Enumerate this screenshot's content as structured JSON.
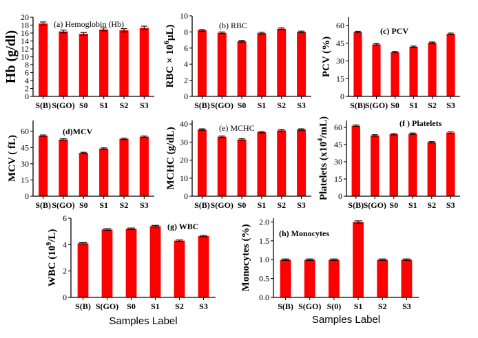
{
  "chart_data": [
    {
      "id": "hb",
      "type": "bar",
      "title": "(a) Hemoglobin (Hb)",
      "ylabel": "Hb (g/dl)",
      "categories": [
        "S(B)",
        "S(GO)",
        "S0",
        "S1",
        "S2",
        "S3"
      ],
      "values": [
        18.4,
        16.4,
        15.8,
        16.9,
        16.7,
        17.3
      ],
      "errors": [
        0.4,
        0.35,
        0.35,
        0.4,
        0.4,
        0.45
      ],
      "ylim": [
        0,
        20
      ],
      "yticks": [
        "0",
        "2",
        "4",
        "6",
        "8",
        "10",
        "12",
        "14",
        "16",
        "18",
        "20"
      ],
      "xlabel": ""
    },
    {
      "id": "rbc",
      "type": "bar",
      "title": "(b) RBC",
      "ylabel": "RBC × 10^6μL)",
      "categories": [
        "S(B)",
        "S(GO)",
        "S0",
        "S1",
        "S2",
        "S3"
      ],
      "values": [
        8.2,
        7.9,
        6.85,
        7.85,
        8.4,
        8.0
      ],
      "errors": [
        0.1,
        0.1,
        0.1,
        0.1,
        0.1,
        0.1
      ],
      "ylim": [
        0,
        10
      ],
      "yticks": [
        "0",
        "2",
        "4",
        "6",
        "8",
        "10"
      ],
      "xlabel": ""
    },
    {
      "id": "pcv",
      "type": "bar",
      "title": "(c) PCV",
      "ylabel": "PCV (%)",
      "categories": [
        "S(B)",
        "S(GO)",
        "S0",
        "S1",
        "S2",
        "S3"
      ],
      "values": [
        54.5,
        44.0,
        37.5,
        42.0,
        45.5,
        53.0
      ],
      "errors": [
        0.6,
        0.5,
        0.5,
        0.5,
        0.5,
        0.6
      ],
      "ylim": [
        0,
        67
      ],
      "yticks": [
        "0",
        "15",
        "30",
        "45",
        "60"
      ],
      "xlabel": ""
    },
    {
      "id": "mcv",
      "type": "bar",
      "title": "(d)MCV",
      "ylabel": "MCV ( fL)",
      "categories": [
        "S(B)",
        "S(GO)",
        "S0",
        "S1",
        "S2",
        "S3"
      ],
      "values": [
        56.0,
        52.5,
        40.0,
        44.0,
        53.0,
        55.0
      ],
      "errors": [
        0.6,
        0.5,
        0.5,
        0.5,
        0.5,
        0.6
      ],
      "ylim": [
        0,
        70
      ],
      "yticks": [
        "0",
        "15",
        "30",
        "45",
        "60"
      ],
      "xlabel": ""
    },
    {
      "id": "mchc",
      "type": "bar",
      "title": "(e) MCHC",
      "ylabel": "MCHC (g/dL)",
      "categories": [
        "S(B)",
        "S(GO)",
        "S0",
        "S1",
        "S2",
        "S3"
      ],
      "values": [
        37.0,
        33.0,
        31.5,
        35.5,
        36.5,
        37.0
      ],
      "errors": [
        0.4,
        0.35,
        0.35,
        0.4,
        0.4,
        0.4
      ],
      "ylim": [
        0,
        42
      ],
      "yticks": [
        "0",
        "10",
        "20",
        "30",
        "40"
      ],
      "xlabel": ""
    },
    {
      "id": "platelets",
      "type": "bar",
      "title": "(f ) Platelets",
      "ylabel": "Platelets (x10^4/mL)",
      "categories": [
        "S(B)",
        "S(GO)",
        "S0",
        "S1",
        "S2",
        "S3"
      ],
      "values": [
        61.5,
        53.0,
        54.0,
        54.5,
        47.0,
        55.5
      ],
      "errors": [
        0.6,
        0.5,
        0.5,
        0.5,
        0.5,
        0.6
      ],
      "ylim": [
        0,
        66
      ],
      "yticks": [
        "0",
        "15",
        "30",
        "45",
        "60"
      ],
      "xlabel": ""
    },
    {
      "id": "wbc",
      "type": "bar",
      "title": "(g) WBC",
      "ylabel": "WBC (10^9/L)",
      "categories": [
        "S(B)",
        "S(GO)",
        "S0",
        "S1",
        "S2",
        "S3"
      ],
      "values": [
        4.1,
        5.15,
        5.2,
        5.4,
        4.3,
        4.65
      ],
      "errors": [
        0.05,
        0.06,
        0.06,
        0.06,
        0.05,
        0.05
      ],
      "ylim": [
        0,
        6
      ],
      "yticks": [
        "0",
        "2",
        "4",
        "6"
      ],
      "xlabel": "Samples Label"
    },
    {
      "id": "monocytes",
      "type": "bar",
      "title": "(h) Monocytes",
      "ylabel": "Monocytes (%)",
      "categories": [
        "S(B)",
        "S(GO)",
        "S(0)",
        "S1",
        "S2",
        "S3"
      ],
      "values": [
        1.0,
        1.0,
        1.0,
        2.0,
        1.0,
        1.0
      ],
      "errors": [
        0.02,
        0.02,
        0.02,
        0.03,
        0.02,
        0.02
      ],
      "ylim": [
        0,
        2.1
      ],
      "yticks": [
        "0.0",
        "0.5",
        "1.0",
        "1.5",
        "2.0"
      ],
      "xlabel": "Samples Label"
    }
  ]
}
